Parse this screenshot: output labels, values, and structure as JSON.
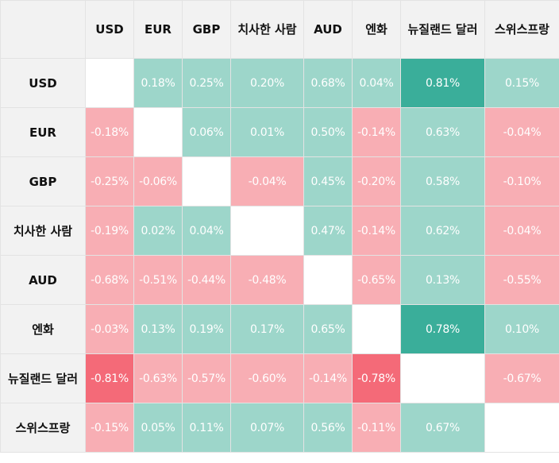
{
  "chart_data": {
    "type": "heatmap",
    "title": "",
    "columns": [
      "USD",
      "EUR",
      "GBP",
      "치사한 사람",
      "AUD",
      "엔화",
      "뉴질랜드 달러",
      "스위스프랑"
    ],
    "rows": [
      "USD",
      "EUR",
      "GBP",
      "치사한 사람",
      "AUD",
      "엔화",
      "뉴질랜드 달러",
      "스위스프랑"
    ],
    "values": [
      [
        null,
        0.18,
        0.25,
        0.2,
        0.68,
        0.04,
        0.81,
        0.15
      ],
      [
        -0.18,
        null,
        0.06,
        0.01,
        0.5,
        -0.14,
        0.63,
        -0.04
      ],
      [
        -0.25,
        -0.06,
        null,
        -0.04,
        0.45,
        -0.2,
        0.58,
        -0.1
      ],
      [
        -0.19,
        0.02,
        0.04,
        null,
        0.47,
        -0.14,
        0.62,
        -0.04
      ],
      [
        -0.68,
        -0.51,
        -0.44,
        -0.48,
        null,
        -0.65,
        0.13,
        -0.55
      ],
      [
        -0.03,
        0.13,
        0.19,
        0.17,
        0.65,
        null,
        0.78,
        0.1
      ],
      [
        -0.81,
        -0.63,
        -0.57,
        -0.6,
        -0.14,
        -0.78,
        null,
        -0.67
      ],
      [
        -0.15,
        0.05,
        0.11,
        0.07,
        0.56,
        -0.11,
        0.67,
        null
      ]
    ],
    "labels": [
      [
        "",
        "0.18%",
        "0.25%",
        "0.20%",
        "0.68%",
        "0.04%",
        "0.81%",
        "0.15%"
      ],
      [
        "-0.18%",
        "",
        "0.06%",
        "0.01%",
        "0.50%",
        "-0.14%",
        "0.63%",
        "-0.04%"
      ],
      [
        "-0.25%",
        "-0.06%",
        "",
        "-0.04%",
        "0.45%",
        "-0.20%",
        "0.58%",
        "-0.10%"
      ],
      [
        "-0.19%",
        "0.02%",
        "0.04%",
        "",
        "0.47%",
        "-0.14%",
        "0.62%",
        "-0.04%"
      ],
      [
        "-0.68%",
        "-0.51%",
        "-0.44%",
        "-0.48%",
        "",
        "-0.65%",
        "0.13%",
        "-0.55%"
      ],
      [
        "-0.03%",
        "0.13%",
        "0.19%",
        "0.17%",
        "0.65%",
        "",
        "0.78%",
        "0.10%"
      ],
      [
        "-0.81%",
        "-0.63%",
        "-0.57%",
        "-0.60%",
        "-0.14%",
        "-0.78%",
        "",
        "-0.67%"
      ],
      [
        "-0.15%",
        "0.05%",
        "0.11%",
        "0.07%",
        "0.56%",
        "-0.11%",
        "0.67%",
        ""
      ]
    ],
    "colors": {
      "positive": "#9dd6ca",
      "strong_positive": "#3aae9a",
      "negative": "#f8aeb4",
      "strong_negative": "#f46a78",
      "empty": "#ffffff",
      "header_bg": "#f2f2f2"
    },
    "strong_threshold": 0.7
  }
}
